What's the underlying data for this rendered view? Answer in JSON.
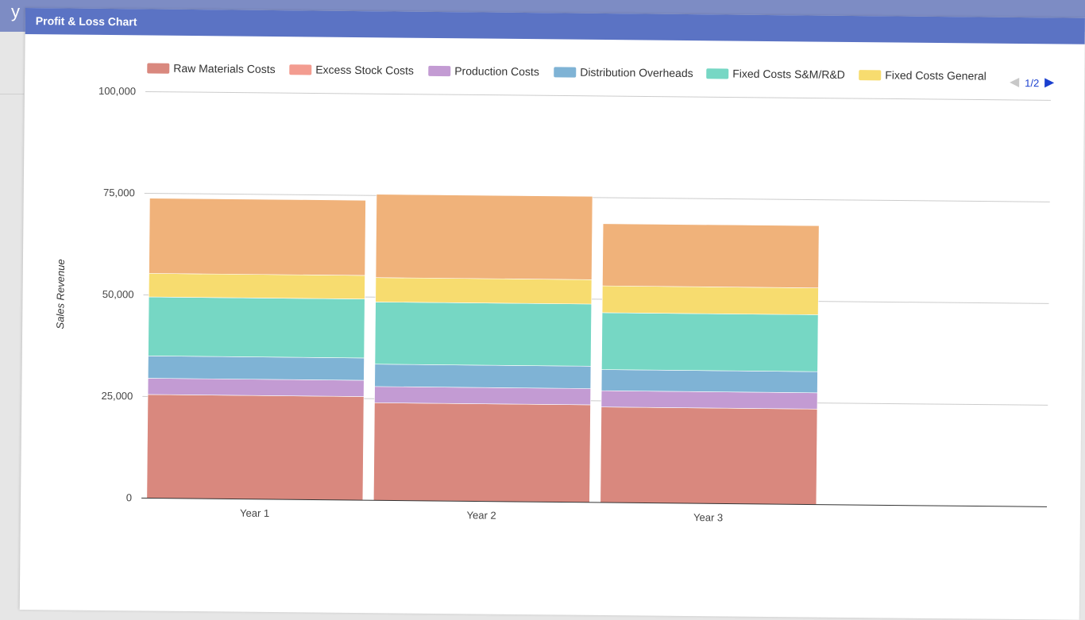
{
  "window": {
    "title": "Profit & Loss Chart"
  },
  "legend": {
    "pager": "1/2"
  },
  "chart_data": {
    "type": "bar",
    "stacked": true,
    "title": "",
    "xlabel": "",
    "ylabel": "Sales Revenue",
    "ylim": [
      0,
      100000
    ],
    "yticks": [
      0,
      25000,
      50000,
      75000,
      100000
    ],
    "ytick_labels": [
      "0",
      "25,000",
      "50,000",
      "75,000",
      "100,000"
    ],
    "categories": [
      "Year 1",
      "Year 2",
      "Year 3"
    ],
    "grid": true,
    "legend_position": "top",
    "series": [
      {
        "name": "Raw Materials Costs",
        "color": "#d9887e",
        "values": [
          25500,
          24000,
          23500
        ]
      },
      {
        "name": "Excess Stock Costs",
        "color": "#f39c90",
        "values": [
          0,
          0,
          0
        ]
      },
      {
        "name": "Production Costs",
        "color": "#c39bd3",
        "values": [
          4000,
          4000,
          4000
        ]
      },
      {
        "name": "Distribution Overheads",
        "color": "#7fb3d5",
        "values": [
          5500,
          5500,
          5200
        ]
      },
      {
        "name": "Fixed Costs S&M/R&D",
        "color": "#76d7c4",
        "values": [
          14500,
          15300,
          14000
        ]
      },
      {
        "name": "Fixed Costs General",
        "color": "#f7dc6f",
        "values": [
          5800,
          6000,
          6600
        ]
      },
      {
        "name": "",
        "color": "#f0b27a",
        "values": [
          18500,
          20500,
          15300
        ]
      }
    ]
  }
}
